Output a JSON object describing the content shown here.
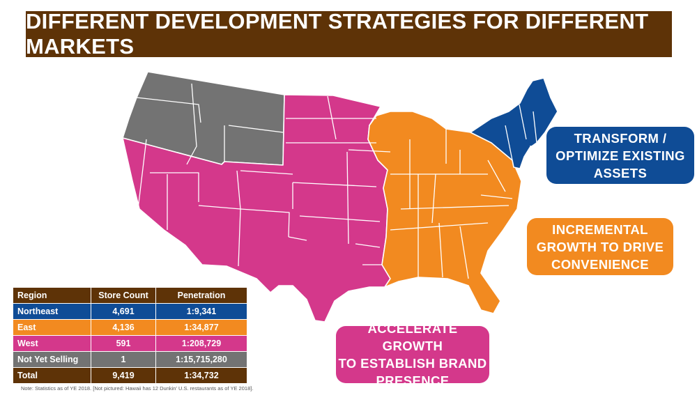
{
  "title": "DIFFERENT DEVELOPMENT STRATEGIES FOR DIFFERENT MARKETS",
  "colors": {
    "title_bar": "#5e3307",
    "northeast": "#0f4c96",
    "east": "#f28a20",
    "west": "#d4388b",
    "not_yet_selling": "#737373",
    "state_border": "#ffffff"
  },
  "callouts": {
    "northeast": [
      "TRANSFORM /",
      "OPTIMIZE EXISTING",
      "ASSETS"
    ],
    "east": [
      "INCREMENTAL",
      "GROWTH TO DRIVE",
      "CONVENIENCE"
    ],
    "west": [
      "ACCELERATE GROWTH",
      "TO ESTABLISH BRAND",
      "PRESENCE"
    ]
  },
  "table": {
    "headers": [
      "Region",
      "Store Count",
      "Penetration"
    ],
    "rows": [
      {
        "region": "Northeast",
        "store_count": "4,691",
        "penetration": "1:9,341"
      },
      {
        "region": "East",
        "store_count": "4,136",
        "penetration": "1:34,877"
      },
      {
        "region": "West",
        "store_count": "591",
        "penetration": "1:208,729"
      },
      {
        "region": "Not Yet Selling",
        "store_count": "1",
        "penetration": "1:15,715,280"
      },
      {
        "region": "Total",
        "store_count": "9,419",
        "penetration": "1:34,732"
      }
    ]
  },
  "note": "Note:  Statistics as of YE 2018.  [Not pictured:  Hawaii has 12 Dunkin' U.S. restaurants as of YE 2018]."
}
